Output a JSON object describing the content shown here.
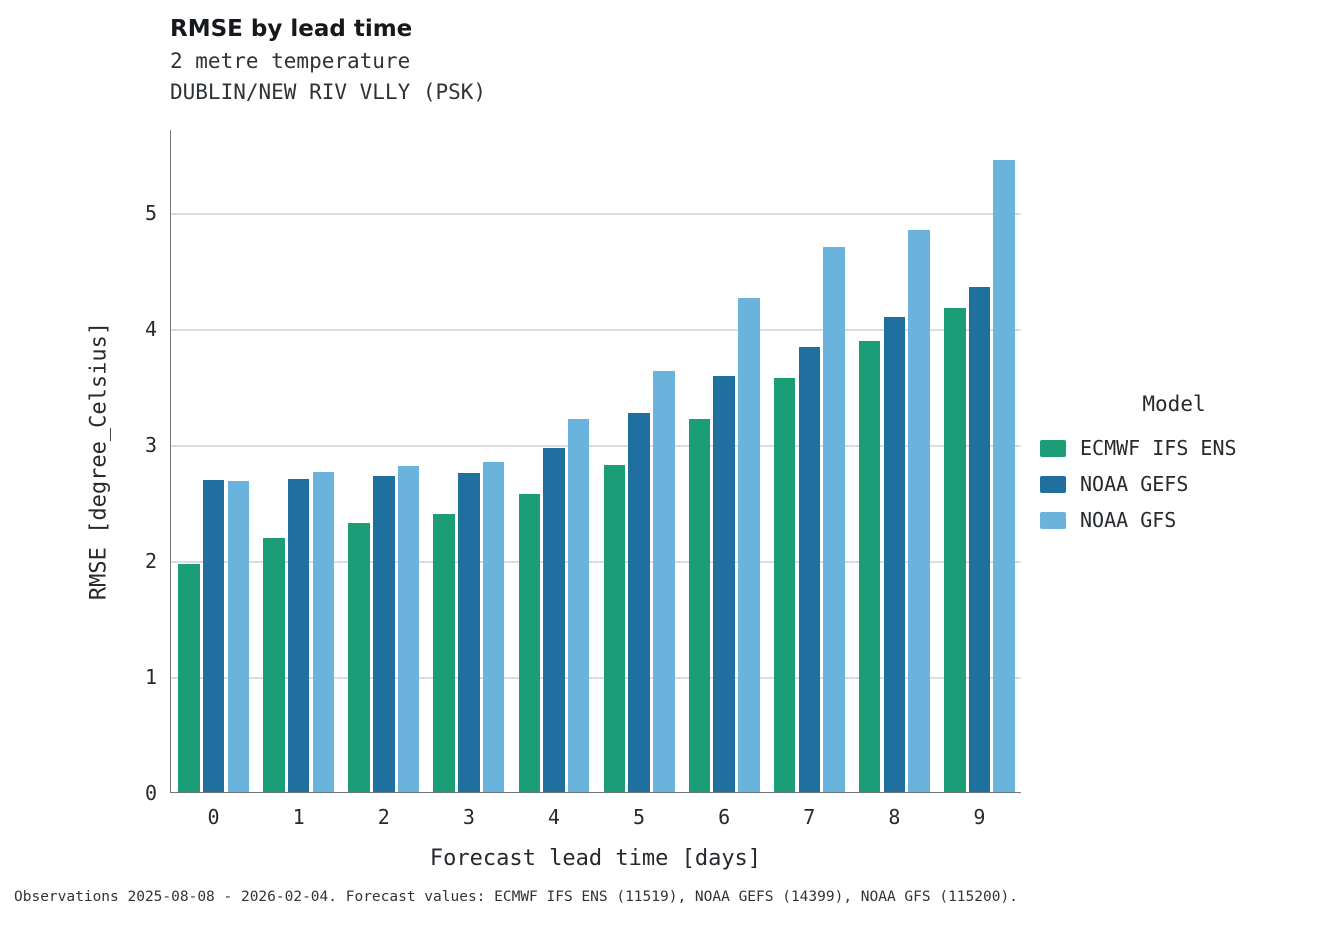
{
  "title": "RMSE by lead time",
  "subtitle1": "2 metre temperature",
  "subtitle2": "DUBLIN/NEW RIV VLLY (PSK)",
  "footer": "Observations 2025-08-08 - 2026-02-04. Forecast values: ECMWF IFS ENS (11519), NOAA GEFS (14399), NOAA GFS (115200).",
  "legend": {
    "title": "Model"
  },
  "chart_data": {
    "type": "bar",
    "title": "RMSE by lead time",
    "subtitle": [
      "2 metre temperature",
      "DUBLIN/NEW RIV VLLY (PSK)"
    ],
    "xlabel": "Forecast lead time [days]",
    "ylabel": "RMSE [degree_Celsius]",
    "categories": [
      0,
      1,
      2,
      3,
      4,
      5,
      6,
      7,
      8,
      9
    ],
    "yticks": [
      0,
      1,
      2,
      3,
      4,
      5
    ],
    "ylim": [
      0,
      5.72
    ],
    "grid": "horizontal",
    "legend_title": "Model",
    "legend_position": "right",
    "series": [
      {
        "name": "ECMWF IFS ENS",
        "color": "#1b9e77",
        "values": [
          1.97,
          2.19,
          2.32,
          2.4,
          2.57,
          2.82,
          3.22,
          3.57,
          3.89,
          4.18
        ]
      },
      {
        "name": "NOAA GEFS",
        "color": "#1f709e",
        "values": [
          2.69,
          2.7,
          2.73,
          2.75,
          2.97,
          3.27,
          3.59,
          3.84,
          4.1,
          4.36
        ]
      },
      {
        "name": "NOAA GFS",
        "color": "#69b3dc",
        "values": [
          2.68,
          2.76,
          2.81,
          2.85,
          3.22,
          3.63,
          4.26,
          4.7,
          4.85,
          5.45
        ]
      }
    ]
  }
}
